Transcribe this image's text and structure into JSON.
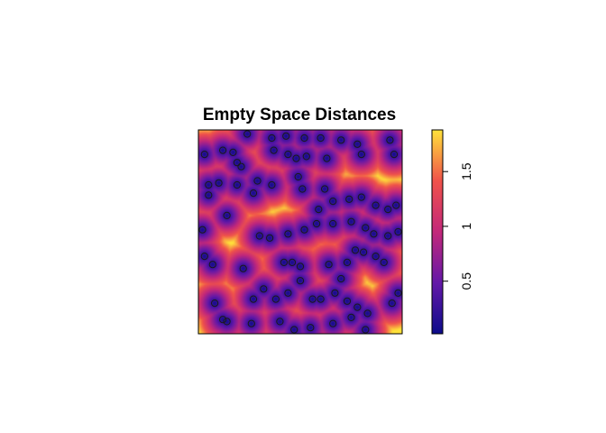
{
  "chart_data": {
    "type": "heatmap",
    "title": "Empty Space Distances",
    "xlabel": "",
    "ylabel": "",
    "window": {
      "xlim": [
        0,
        1
      ],
      "ylim": [
        0,
        1
      ]
    },
    "legend": {
      "placement": "right",
      "range": [
        0.02,
        1.88
      ],
      "ticks": [
        0.5,
        1,
        1.5
      ],
      "tick_labels": [
        "0.5",
        "1",
        "1.5"
      ]
    },
    "colors": {
      "low": "#0c0c8a",
      "mid_low": "#6418a8",
      "mid": "#c3287a",
      "mid_high": "#f0524a",
      "high": "#ffe23a",
      "point_outline": "#1a1a1a"
    },
    "points": [
      [
        0.24,
        0.98
      ],
      [
        0.36,
        0.96
      ],
      [
        0.43,
        0.97
      ],
      [
        0.52,
        0.96
      ],
      [
        0.6,
        0.96
      ],
      [
        0.7,
        0.95
      ],
      [
        0.78,
        0.93
      ],
      [
        0.94,
        0.95
      ],
      [
        0.03,
        0.88
      ],
      [
        0.12,
        0.9
      ],
      [
        0.17,
        0.89
      ],
      [
        0.19,
        0.84
      ],
      [
        0.21,
        0.82
      ],
      [
        0.37,
        0.9
      ],
      [
        0.44,
        0.88
      ],
      [
        0.48,
        0.86
      ],
      [
        0.53,
        0.87
      ],
      [
        0.63,
        0.86
      ],
      [
        0.8,
        0.88
      ],
      [
        0.96,
        0.88
      ],
      [
        0.05,
        0.73
      ],
      [
        0.1,
        0.74
      ],
      [
        0.19,
        0.73
      ],
      [
        0.27,
        0.69
      ],
      [
        0.29,
        0.75
      ],
      [
        0.36,
        0.73
      ],
      [
        0.49,
        0.77
      ],
      [
        0.51,
        0.71
      ],
      [
        0.62,
        0.71
      ],
      [
        0.66,
        0.65
      ],
      [
        0.74,
        0.66
      ],
      [
        0.8,
        0.67
      ],
      [
        0.87,
        0.63
      ],
      [
        0.93,
        0.61
      ],
      [
        0.97,
        0.63
      ],
      [
        0.05,
        0.68
      ],
      [
        0.14,
        0.58
      ],
      [
        0.02,
        0.51
      ],
      [
        0.3,
        0.48
      ],
      [
        0.35,
        0.47
      ],
      [
        0.44,
        0.49
      ],
      [
        0.52,
        0.51
      ],
      [
        0.58,
        0.54
      ],
      [
        0.66,
        0.54
      ],
      [
        0.75,
        0.55
      ],
      [
        0.82,
        0.52
      ],
      [
        0.86,
        0.49
      ],
      [
        0.93,
        0.48
      ],
      [
        0.98,
        0.5
      ],
      [
        0.03,
        0.38
      ],
      [
        0.07,
        0.34
      ],
      [
        0.22,
        0.32
      ],
      [
        0.42,
        0.35
      ],
      [
        0.46,
        0.35
      ],
      [
        0.5,
        0.33
      ],
      [
        0.64,
        0.34
      ],
      [
        0.73,
        0.35
      ],
      [
        0.77,
        0.41
      ],
      [
        0.81,
        0.4
      ],
      [
        0.87,
        0.38
      ],
      [
        0.91,
        0.35
      ],
      [
        0.08,
        0.15
      ],
      [
        0.12,
        0.07
      ],
      [
        0.27,
        0.17
      ],
      [
        0.38,
        0.17
      ],
      [
        0.44,
        0.2
      ],
      [
        0.5,
        0.26
      ],
      [
        0.56,
        0.17
      ],
      [
        0.6,
        0.17
      ],
      [
        0.67,
        0.2
      ],
      [
        0.73,
        0.16
      ],
      [
        0.78,
        0.13
      ],
      [
        0.83,
        0.1
      ],
      [
        0.98,
        0.2
      ],
      [
        0.14,
        0.06
      ],
      [
        0.26,
        0.05
      ],
      [
        0.4,
        0.06
      ],
      [
        0.47,
        0.02
      ],
      [
        0.55,
        0.03
      ],
      [
        0.66,
        0.05
      ],
      [
        0.75,
        0.08
      ],
      [
        0.82,
        0.02
      ],
      [
        0.95,
        0.15
      ],
      [
        0.59,
        0.61
      ],
      [
        0.32,
        0.22
      ],
      [
        0.7,
        0.27
      ]
    ]
  }
}
